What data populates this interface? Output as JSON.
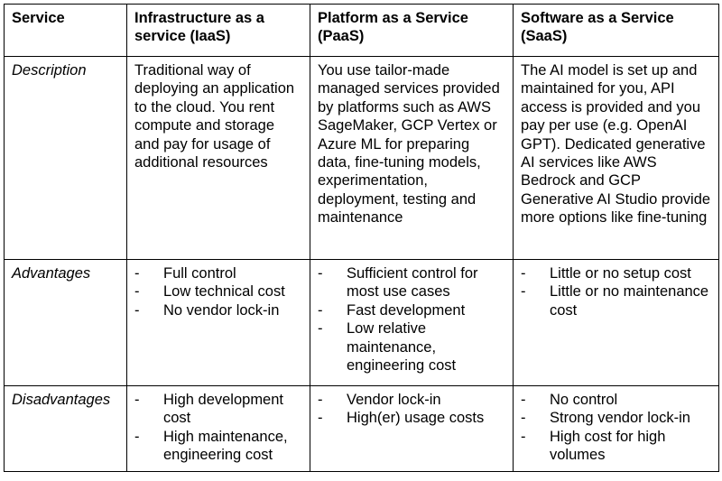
{
  "headers": {
    "service": "Service",
    "iaas": "Infrastructure as a service (IaaS)",
    "paas": "Platform as a Service (PaaS)",
    "saas": "Software as a Service (SaaS)"
  },
  "rows": {
    "description": {
      "label": "Description",
      "iaas": "Traditional way of deploying an application to the cloud. You rent compute and storage and pay for usage of additional resources",
      "paas": "You use tailor-made managed services provided by platforms such as AWS SageMaker, GCP Vertex or Azure ML for preparing data, fine-tuning models, experimentation, deployment, testing and maintenance",
      "saas": "The AI model is set up and maintained for you, API access is provided and you pay per use (e.g. OpenAI GPT). Dedicated generative AI services like AWS Bedrock and GCP Generative AI Studio provide more options like fine-tuning"
    },
    "advantages": {
      "label": "Advantages",
      "iaas": [
        "Full control",
        "Low technical cost",
        "No vendor lock-in"
      ],
      "paas": [
        "Sufficient control for most use cases",
        "Fast development",
        "Low relative maintenance, engineering cost"
      ],
      "saas": [
        "Little or no setup cost",
        "Little or no maintenance cost"
      ]
    },
    "disadvantages": {
      "label": "Disadvantages",
      "iaas": [
        "High development cost",
        "High maintenance, engineering cost"
      ],
      "paas": [
        "Vendor lock-in",
        "High(er) usage costs"
      ],
      "saas": [
        "No control",
        "Strong vendor lock-in",
        "High cost for high volumes"
      ]
    }
  },
  "bullet_marker": "-"
}
